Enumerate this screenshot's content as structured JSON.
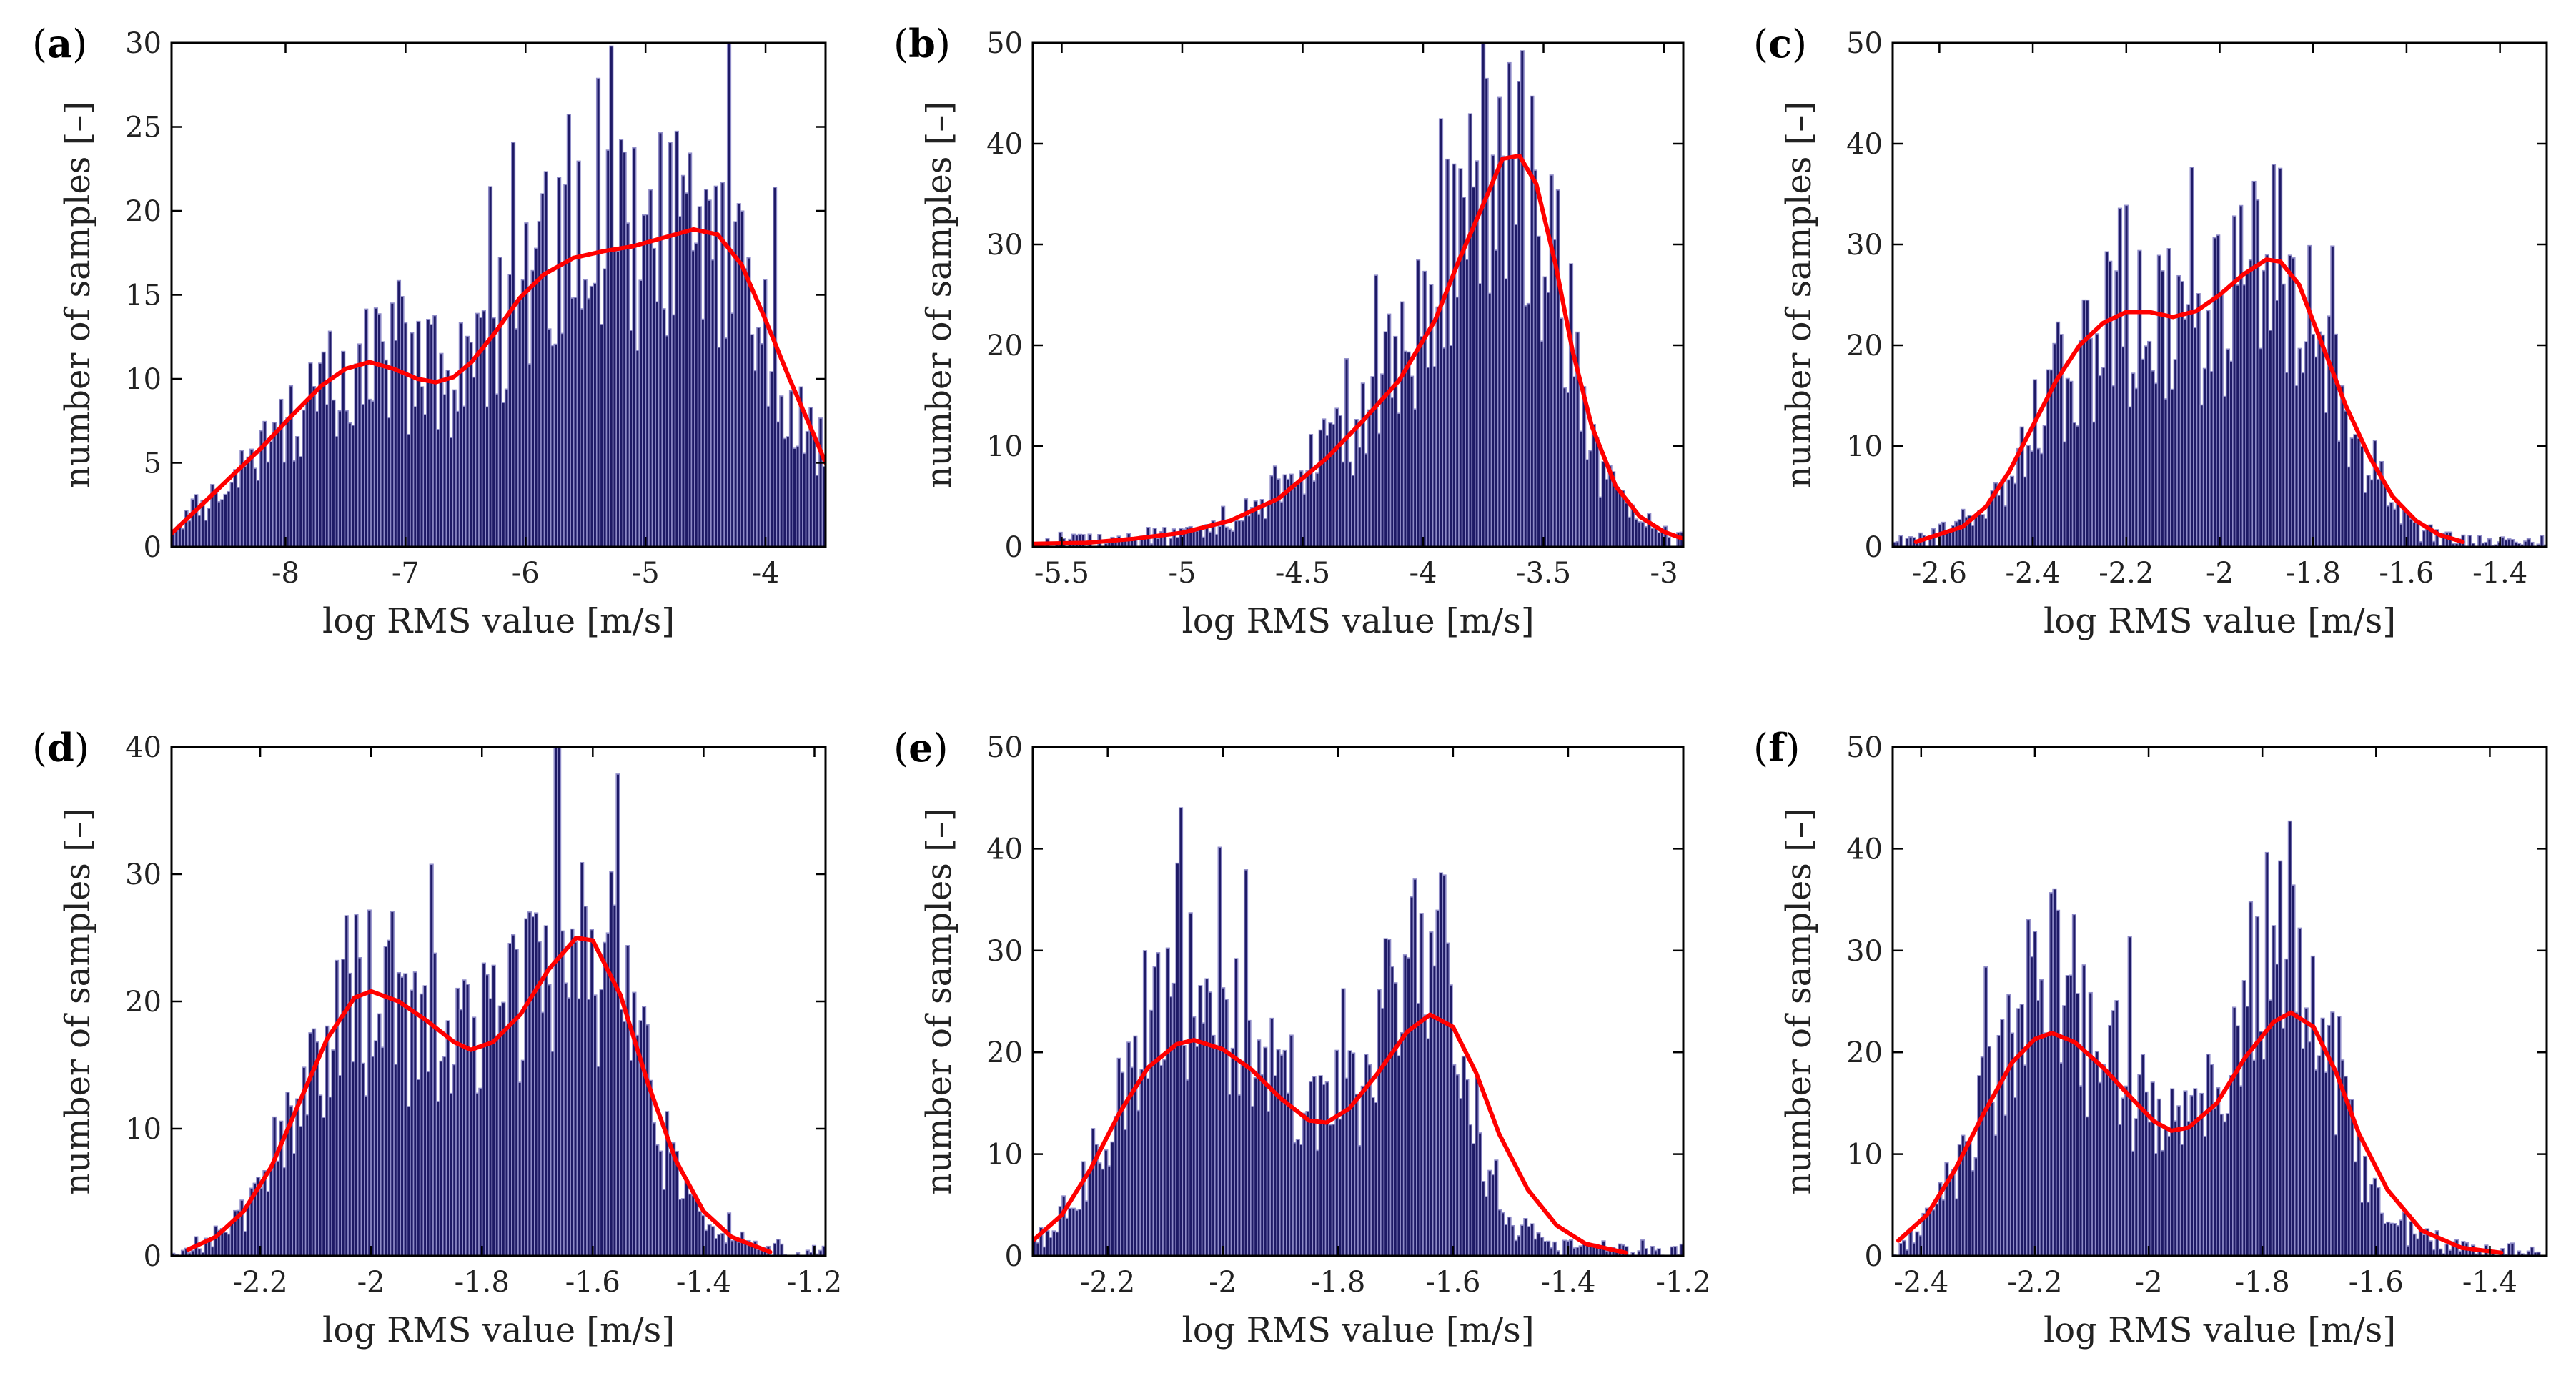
{
  "chart_data": [
    {
      "panel": "a",
      "type": "bar",
      "xlabel": "log RMS value [m/s]",
      "ylabel": "number of samples [–]",
      "xlim": [
        -8.95,
        -3.5
      ],
      "ylim": [
        0,
        30
      ],
      "xticks": [
        -8,
        -7,
        -6,
        -5,
        -4
      ],
      "yticks": [
        0,
        5,
        10,
        15,
        20,
        25,
        30
      ],
      "bins": 200,
      "profile": [
        [
          -8.95,
          1
        ],
        [
          -8.5,
          3
        ],
        [
          -8.2,
          5.5
        ],
        [
          -7.9,
          8
        ],
        [
          -7.5,
          10.5
        ],
        [
          -7.25,
          11
        ],
        [
          -7.0,
          10.2
        ],
        [
          -6.75,
          9.8
        ],
        [
          -6.5,
          10.5
        ],
        [
          -6.2,
          13
        ],
        [
          -5.9,
          15.5
        ],
        [
          -5.6,
          17
        ],
        [
          -5.3,
          17.8
        ],
        [
          -5.0,
          18
        ],
        [
          -4.75,
          18.5
        ],
        [
          -4.55,
          19
        ],
        [
          -4.3,
          17.5
        ],
        [
          -4.0,
          13
        ],
        [
          -3.75,
          9
        ],
        [
          -3.5,
          5
        ]
      ],
      "kde": [
        [
          -8.95,
          0.8
        ],
        [
          -8.7,
          2.5
        ],
        [
          -8.45,
          4.2
        ],
        [
          -8.2,
          5.9
        ],
        [
          -7.95,
          7.8
        ],
        [
          -7.7,
          9.6
        ],
        [
          -7.5,
          10.6
        ],
        [
          -7.3,
          11
        ],
        [
          -7.1,
          10.6
        ],
        [
          -6.9,
          10.0
        ],
        [
          -6.75,
          9.8
        ],
        [
          -6.6,
          10.1
        ],
        [
          -6.45,
          11.0
        ],
        [
          -6.25,
          12.8
        ],
        [
          -6.05,
          14.8
        ],
        [
          -5.85,
          16.2
        ],
        [
          -5.6,
          17.2
        ],
        [
          -5.35,
          17.6
        ],
        [
          -5.1,
          17.9
        ],
        [
          -4.85,
          18.4
        ],
        [
          -4.6,
          18.9
        ],
        [
          -4.4,
          18.6
        ],
        [
          -4.2,
          16.8
        ],
        [
          -4.0,
          13.5
        ],
        [
          -3.8,
          10.0
        ],
        [
          -3.6,
          6.7
        ],
        [
          -3.5,
          5.0
        ]
      ]
    },
    {
      "panel": "b",
      "type": "bar",
      "xlabel": "log RMS value [m/s]",
      "ylabel": "number of samples [–]",
      "xlim": [
        -5.62,
        -2.92
      ],
      "ylim": [
        0,
        50
      ],
      "xticks": [
        -5.5,
        -5,
        -4.5,
        -4,
        -3.5,
        -3
      ],
      "yticks": [
        0,
        10,
        20,
        30,
        40,
        50
      ],
      "bins": 200,
      "profile": [
        [
          -5.62,
          0.3
        ],
        [
          -5.3,
          0.5
        ],
        [
          -5.0,
          1.2
        ],
        [
          -4.8,
          2.5
        ],
        [
          -4.6,
          5
        ],
        [
          -4.4,
          9.5
        ],
        [
          -4.2,
          15
        ],
        [
          -4.0,
          22
        ],
        [
          -3.85,
          30
        ],
        [
          -3.75,
          36
        ],
        [
          -3.65,
          39
        ],
        [
          -3.55,
          37
        ],
        [
          -3.45,
          28
        ],
        [
          -3.35,
          16
        ],
        [
          -3.25,
          7
        ],
        [
          -3.1,
          2.5
        ],
        [
          -2.92,
          0.5
        ]
      ],
      "kde": [
        [
          -5.62,
          0.3
        ],
        [
          -5.4,
          0.4
        ],
        [
          -5.2,
          0.8
        ],
        [
          -5.0,
          1.4
        ],
        [
          -4.8,
          2.6
        ],
        [
          -4.6,
          4.8
        ],
        [
          -4.4,
          8.8
        ],
        [
          -4.25,
          12.5
        ],
        [
          -4.1,
          16.5
        ],
        [
          -3.95,
          22.5
        ],
        [
          -3.85,
          28.5
        ],
        [
          -3.75,
          34
        ],
        [
          -3.67,
          38.5
        ],
        [
          -3.6,
          38.8
        ],
        [
          -3.53,
          36
        ],
        [
          -3.45,
          28
        ],
        [
          -3.38,
          19.5
        ],
        [
          -3.3,
          12
        ],
        [
          -3.2,
          6
        ],
        [
          -3.1,
          3
        ],
        [
          -3.0,
          1.5
        ],
        [
          -2.92,
          0.8
        ]
      ]
    },
    {
      "panel": "c",
      "type": "bar",
      "xlabel": "log RMS value [m/s]",
      "ylabel": "number of samples [–]",
      "xlim": [
        -2.7,
        -1.3
      ],
      "ylim": [
        0,
        50
      ],
      "xticks": [
        -2.6,
        -2.4,
        -2.2,
        -2,
        -1.8,
        -1.6,
        -1.4
      ],
      "yticks": [
        0,
        10,
        20,
        30,
        40,
        50
      ],
      "bins": 200,
      "profile": [
        [
          -2.66,
          0.3
        ],
        [
          -2.55,
          2
        ],
        [
          -2.45,
          7
        ],
        [
          -2.35,
          17
        ],
        [
          -2.25,
          22
        ],
        [
          -2.15,
          23.5
        ],
        [
          -2.05,
          22.5
        ],
        [
          -1.98,
          24
        ],
        [
          -1.9,
          28.5
        ],
        [
          -1.83,
          26
        ],
        [
          -1.77,
          18
        ],
        [
          -1.7,
          9
        ],
        [
          -1.62,
          3.5
        ],
        [
          -1.55,
          1
        ],
        [
          -1.48,
          0.3
        ],
        [
          -1.3,
          0.2
        ]
      ],
      "kde": [
        [
          -2.65,
          0.5
        ],
        [
          -2.55,
          2
        ],
        [
          -2.5,
          4
        ],
        [
          -2.45,
          7.5
        ],
        [
          -2.4,
          12
        ],
        [
          -2.35,
          16.5
        ],
        [
          -2.3,
          20
        ],
        [
          -2.25,
          22.2
        ],
        [
          -2.2,
          23.3
        ],
        [
          -2.15,
          23.3
        ],
        [
          -2.1,
          22.8
        ],
        [
          -2.05,
          23.4
        ],
        [
          -2.0,
          25
        ],
        [
          -1.95,
          27
        ],
        [
          -1.9,
          28.5
        ],
        [
          -1.87,
          28.3
        ],
        [
          -1.83,
          26
        ],
        [
          -1.78,
          20
        ],
        [
          -1.73,
          14
        ],
        [
          -1.68,
          9
        ],
        [
          -1.63,
          5
        ],
        [
          -1.58,
          2.6
        ],
        [
          -1.53,
          1.2
        ],
        [
          -1.48,
          0.5
        ]
      ]
    },
    {
      "panel": "d",
      "type": "bar",
      "xlabel": "log RMS value [m/s]",
      "ylabel": "number of samples [–]",
      "xlim": [
        -2.36,
        -1.18
      ],
      "ylim": [
        0,
        40
      ],
      "xticks": [
        -2.2,
        -2,
        -1.8,
        -1.6,
        -1.4,
        -1.2
      ],
      "yticks": [
        0,
        10,
        20,
        30,
        40
      ],
      "bins": 200,
      "profile": [
        [
          -2.36,
          0.2
        ],
        [
          -2.28,
          1.5
        ],
        [
          -2.2,
          5
        ],
        [
          -2.12,
          13
        ],
        [
          -2.05,
          19.5
        ],
        [
          -2.0,
          20.8
        ],
        [
          -1.92,
          19
        ],
        [
          -1.84,
          16.5
        ],
        [
          -1.76,
          18
        ],
        [
          -1.68,
          22.5
        ],
        [
          -1.62,
          25.5
        ],
        [
          -1.56,
          22
        ],
        [
          -1.5,
          13
        ],
        [
          -1.44,
          5
        ],
        [
          -1.38,
          2
        ],
        [
          -1.3,
          0.6
        ],
        [
          -1.2,
          0.2
        ]
      ],
      "kde": [
        [
          -2.33,
          0.5
        ],
        [
          -2.28,
          1.5
        ],
        [
          -2.23,
          3.5
        ],
        [
          -2.18,
          7
        ],
        [
          -2.13,
          12
        ],
        [
          -2.08,
          17
        ],
        [
          -2.03,
          20.3
        ],
        [
          -2.0,
          20.8
        ],
        [
          -1.95,
          20
        ],
        [
          -1.9,
          18.5
        ],
        [
          -1.85,
          16.8
        ],
        [
          -1.82,
          16.2
        ],
        [
          -1.78,
          16.8
        ],
        [
          -1.73,
          19
        ],
        [
          -1.68,
          22.5
        ],
        [
          -1.63,
          25
        ],
        [
          -1.6,
          24.8
        ],
        [
          -1.55,
          20.5
        ],
        [
          -1.5,
          13.5
        ],
        [
          -1.45,
          7.5
        ],
        [
          -1.4,
          3.5
        ],
        [
          -1.35,
          1.5
        ],
        [
          -1.28,
          0.3
        ]
      ]
    },
    {
      "panel": "e",
      "type": "bar",
      "xlabel": "log RMS value [m/s]",
      "ylabel": "number of samples [–]",
      "xlim": [
        -2.33,
        -1.2
      ],
      "ylim": [
        0,
        50
      ],
      "xticks": [
        -2.2,
        -2,
        -1.8,
        -1.6,
        -1.4,
        -1.2
      ],
      "yticks": [
        0,
        10,
        20,
        30,
        40,
        50
      ],
      "bins": 200,
      "profile": [
        [
          -2.32,
          1.5
        ],
        [
          -2.25,
          6
        ],
        [
          -2.18,
          16
        ],
        [
          -2.1,
          24
        ],
        [
          -2.04,
          25
        ],
        [
          -1.98,
          22
        ],
        [
          -1.9,
          17
        ],
        [
          -1.84,
          13.5
        ],
        [
          -1.76,
          17
        ],
        [
          -1.68,
          28
        ],
        [
          -1.64,
          33
        ],
        [
          -1.6,
          24
        ],
        [
          -1.55,
          10
        ],
        [
          -1.5,
          3
        ],
        [
          -1.42,
          1
        ],
        [
          -1.3,
          0.4
        ],
        [
          -1.2,
          0.2
        ]
      ],
      "kde": [
        [
          -2.33,
          1.5
        ],
        [
          -2.28,
          4
        ],
        [
          -2.23,
          8.5
        ],
        [
          -2.18,
          14
        ],
        [
          -2.13,
          18.5
        ],
        [
          -2.08,
          20.8
        ],
        [
          -2.05,
          21.2
        ],
        [
          -2.0,
          20.3
        ],
        [
          -1.95,
          18.3
        ],
        [
          -1.9,
          15.5
        ],
        [
          -1.85,
          13.3
        ],
        [
          -1.82,
          13.1
        ],
        [
          -1.78,
          14.5
        ],
        [
          -1.73,
          18
        ],
        [
          -1.68,
          22
        ],
        [
          -1.64,
          23.7
        ],
        [
          -1.6,
          22.5
        ],
        [
          -1.56,
          18
        ],
        [
          -1.52,
          12
        ],
        [
          -1.47,
          6.5
        ],
        [
          -1.42,
          3
        ],
        [
          -1.37,
          1.2
        ],
        [
          -1.3,
          0.3
        ]
      ]
    },
    {
      "panel": "f",
      "type": "bar",
      "xlabel": "log RMS value [m/s]",
      "ylabel": "number of samples [–]",
      "xlim": [
        -2.45,
        -1.3
      ],
      "ylim": [
        0,
        50
      ],
      "xticks": [
        -2.4,
        -2.2,
        -2,
        -1.8,
        -1.6,
        -1.4
      ],
      "yticks": [
        0,
        10,
        20,
        30,
        40,
        50
      ],
      "bins": 200,
      "profile": [
        [
          -2.44,
          0.5
        ],
        [
          -2.38,
          4
        ],
        [
          -2.3,
          13
        ],
        [
          -2.22,
          25
        ],
        [
          -2.17,
          27
        ],
        [
          -2.1,
          22
        ],
        [
          -2.02,
          16
        ],
        [
          -1.95,
          12
        ],
        [
          -1.88,
          16
        ],
        [
          -1.82,
          26
        ],
        [
          -1.76,
          33
        ],
        [
          -1.72,
          30
        ],
        [
          -1.66,
          16
        ],
        [
          -1.6,
          5
        ],
        [
          -1.5,
          1.2
        ],
        [
          -1.4,
          0.4
        ],
        [
          -1.3,
          0.2
        ]
      ],
      "kde": [
        [
          -2.44,
          1.5
        ],
        [
          -2.39,
          4
        ],
        [
          -2.34,
          8.5
        ],
        [
          -2.29,
          14
        ],
        [
          -2.24,
          19
        ],
        [
          -2.2,
          21.3
        ],
        [
          -2.17,
          21.9
        ],
        [
          -2.13,
          21
        ],
        [
          -2.08,
          18.5
        ],
        [
          -2.03,
          15.5
        ],
        [
          -1.99,
          13.2
        ],
        [
          -1.96,
          12.3
        ],
        [
          -1.93,
          12.6
        ],
        [
          -1.88,
          15
        ],
        [
          -1.83,
          19.5
        ],
        [
          -1.78,
          23
        ],
        [
          -1.75,
          23.9
        ],
        [
          -1.71,
          22.5
        ],
        [
          -1.67,
          18
        ],
        [
          -1.63,
          12
        ],
        [
          -1.58,
          6.5
        ],
        [
          -1.52,
          2.5
        ],
        [
          -1.45,
          0.8
        ],
        [
          -1.38,
          0.3
        ]
      ]
    }
  ]
}
